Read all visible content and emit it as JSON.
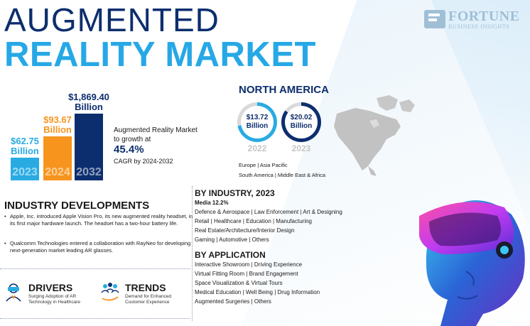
{
  "title": {
    "line1": "AUGMENTED",
    "line2": "REALITY MARKET"
  },
  "logo": {
    "name": "FORTUNE",
    "sub": "BUSINESS INSIGHTS"
  },
  "chart_data": {
    "type": "bar",
    "categories": [
      "2023",
      "2024",
      "2032"
    ],
    "values": [
      62.75,
      93.67,
      1869.4
    ],
    "value_labels": [
      "$62.75",
      "$93.67",
      "$1,869.40"
    ],
    "unit_label": "Billion",
    "colors": [
      "#29abe2",
      "#f7941d",
      "#0d2e6e"
    ]
  },
  "growth": {
    "line1": "Augmented Reality Market",
    "line2": "to growth at",
    "value": "45.4%",
    "cagr": "CAGR by 2024-2032"
  },
  "north_america": {
    "title": "NORTH AMERICA",
    "rings": [
      {
        "value": "$13.72",
        "unit": "Billion",
        "year": "2022",
        "color": "#29abe2",
        "progress": 0.72
      },
      {
        "value": "$20.02",
        "unit": "Billion",
        "year": "2023",
        "color": "#0d2e6e",
        "progress": 0.85
      }
    ],
    "regions_line1": "Europe  |  Asia Pacific",
    "regions_line2": "South America  |  Middle East & Africa"
  },
  "industry_developments": {
    "title": "INDUSTRY DEVELOPMENTS",
    "items": [
      "Apple, Inc. introduced Apple Vision Pro, its new augmented reality headset, in its first major hardware launch. The headset has a two-hour battery life.",
      "Qualcomm Technologies entered a collaboration with RayNeo for developing next-generation market leading AR glasses."
    ]
  },
  "drivers": {
    "title": "DRIVERS",
    "sub": "Surging Adoption of AR Technology in Healthcare"
  },
  "trends": {
    "title": "TRENDS",
    "sub": "Demand for Enhanced Customer Experience"
  },
  "by_industry": {
    "title": "BY INDUSTRY, 2023",
    "lines": [
      "Media 12.2%",
      "Defence & Aerospace  |  Law Enforcement  |  Art & Designing",
      "Retail  |  Healthcare  |  Education  |  Manufacturing",
      "Real Estate/Architecture/Interior Design",
      "Gaming  |  Automotive  |  Others"
    ]
  },
  "by_application": {
    "title": "BY APPLICATION",
    "lines": [
      "Interactive Showroom  |  Driving Experience",
      "Virtual Fitting Room  |  Brand Engagement",
      "Space Visualization & Virtual Tours",
      "Medical Education  |  Well Being  |  Drug Information",
      "Augmented Surgeries  |  Others"
    ]
  }
}
